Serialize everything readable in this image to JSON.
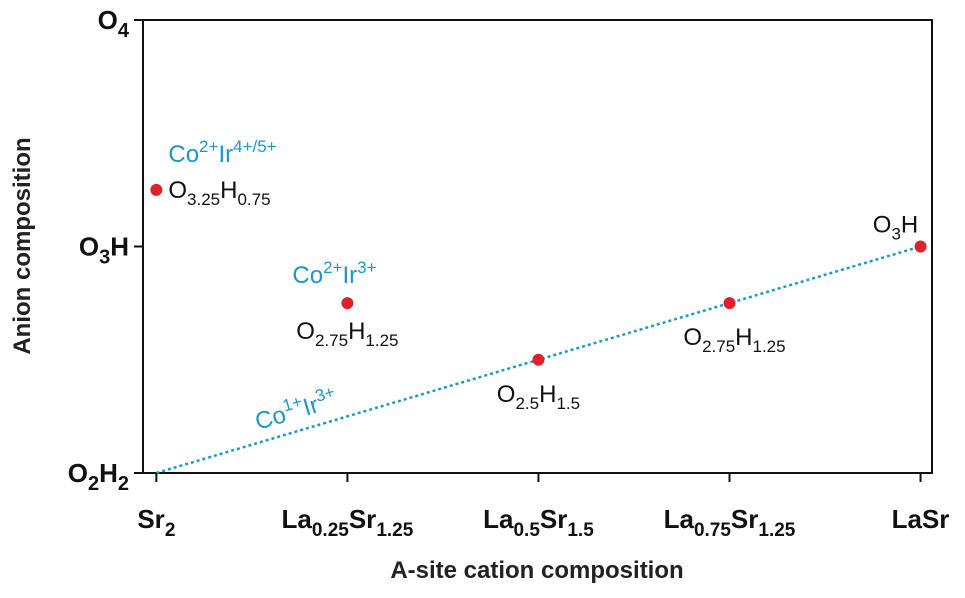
{
  "chart_data": {
    "type": "scatter",
    "xlabel": "A-site cation composition",
    "ylabel": "Anion composition",
    "x_ticks": [
      {
        "value": 0,
        "parts": [
          {
            "t": "Sr"
          },
          {
            "t": "2",
            "sub": true
          }
        ]
      },
      {
        "value": 1,
        "parts": [
          {
            "t": "La"
          },
          {
            "t": "0.25",
            "sub": true
          },
          {
            "t": "Sr"
          },
          {
            "t": "1.25",
            "sub": true
          }
        ]
      },
      {
        "value": 2,
        "parts": [
          {
            "t": "La"
          },
          {
            "t": "0.5",
            "sub": true
          },
          {
            "t": "Sr"
          },
          {
            "t": "1.5",
            "sub": true
          }
        ]
      },
      {
        "value": 3,
        "parts": [
          {
            "t": "La"
          },
          {
            "t": "0.75",
            "sub": true
          },
          {
            "t": "Sr"
          },
          {
            "t": "1.25",
            "sub": true
          }
        ]
      },
      {
        "value": 4,
        "parts": [
          {
            "t": "LaSr"
          }
        ]
      }
    ],
    "y_ticks": [
      {
        "value": 0,
        "parts": [
          {
            "t": "O"
          },
          {
            "t": "2",
            "sub": true
          },
          {
            "t": "H"
          },
          {
            "t": "2",
            "sub": true
          }
        ]
      },
      {
        "value": 1,
        "parts": [
          {
            "t": "O"
          },
          {
            "t": "3",
            "sub": true
          },
          {
            "t": "H"
          }
        ]
      },
      {
        "value": 2,
        "parts": [
          {
            "t": "O"
          },
          {
            "t": "4",
            "sub": true
          }
        ]
      }
    ],
    "xlim": [
      -0.07,
      4.06
    ],
    "ylim": [
      0,
      2
    ],
    "points": [
      {
        "x": 0,
        "y": 1.25,
        "label_parts": [
          {
            "t": "O"
          },
          {
            "t": "3.25",
            "sub": true
          },
          {
            "t": "H"
          },
          {
            "t": "0.75",
            "sub": true
          }
        ]
      },
      {
        "x": 1,
        "y": 0.75,
        "label_parts": [
          {
            "t": "O"
          },
          {
            "t": "2.75",
            "sub": true
          },
          {
            "t": "H"
          },
          {
            "t": "1.25",
            "sub": true
          }
        ]
      },
      {
        "x": 2,
        "y": 0.5,
        "label_parts": [
          {
            "t": "O"
          },
          {
            "t": "2.5",
            "sub": true
          },
          {
            "t": "H"
          },
          {
            "t": "1.5",
            "sub": true
          }
        ]
      },
      {
        "x": 3,
        "y": 0.75,
        "label_parts": [
          {
            "t": "O"
          },
          {
            "t": "2.75",
            "sub": true
          },
          {
            "t": "H"
          },
          {
            "t": "1.25",
            "sub": true
          }
        ]
      },
      {
        "x": 4,
        "y": 1,
        "label_parts": [
          {
            "t": "O"
          },
          {
            "t": "3",
            "sub": true
          },
          {
            "t": "H"
          }
        ]
      }
    ],
    "trend_line": {
      "x": [
        0,
        4
      ],
      "y": [
        0,
        1
      ],
      "style": "dotted"
    },
    "annotations": [
      {
        "x": 0,
        "y": 1.25,
        "parts": [
          {
            "t": "Co"
          },
          {
            "t": "2+",
            "sup": true
          },
          {
            "t": "Ir"
          },
          {
            "t": "4+/5+",
            "sup": true
          }
        ]
      },
      {
        "x": 1,
        "y": 0.75,
        "parts": [
          {
            "t": "Co"
          },
          {
            "t": "2+",
            "sup": true
          },
          {
            "t": "Ir"
          },
          {
            "t": "3+",
            "sup": true
          }
        ]
      },
      {
        "x": 0.55,
        "y": 0.2,
        "parts": [
          {
            "t": "Co"
          },
          {
            "t": "1+",
            "sup": true
          },
          {
            "t": "Ir"
          },
          {
            "t": "3+",
            "sup": true
          }
        ],
        "rotated": true
      }
    ],
    "colors": {
      "point": "#e0202b",
      "trend": "#1b9ac9",
      "annotation": "#1b97c8",
      "axis": "#111111"
    },
    "grid": false,
    "legend": "none"
  }
}
